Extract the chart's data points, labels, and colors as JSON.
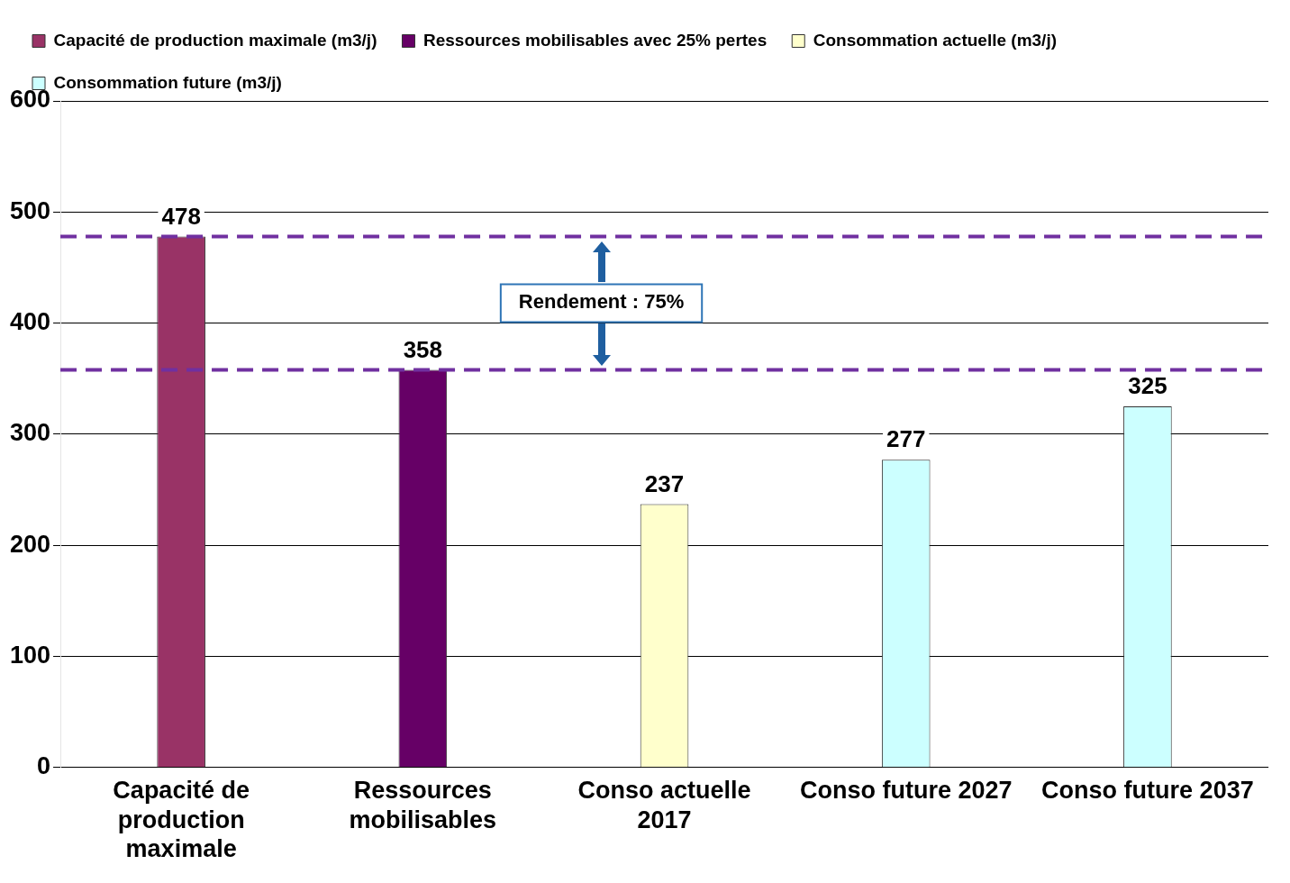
{
  "chart_data": {
    "type": "bar",
    "categories": [
      "Capacité de production maximale",
      "Ressources mobilisables",
      "Conso actuelle 2017",
      "Conso future 2027",
      "Conso future 2037"
    ],
    "series": [
      {
        "name": "Capacité de production maximale (m3/j)",
        "color": "#993366",
        "values": [
          478,
          null,
          null,
          null,
          null
        ]
      },
      {
        "name": "Ressources mobilisables avec 25% pertes",
        "color": "#660066",
        "values": [
          null,
          358,
          null,
          null,
          null
        ]
      },
      {
        "name": "Consommation actuelle (m3/j)",
        "color": "#ffffcc",
        "values": [
          null,
          null,
          237,
          null,
          null
        ]
      },
      {
        "name": "Consommation future (m3/j)",
        "color": "#ccffff",
        "values": [
          null,
          null,
          null,
          277,
          325
        ]
      }
    ],
    "ylim": [
      0,
      600
    ],
    "yticks": [
      0,
      100,
      200,
      300,
      400,
      500,
      600
    ],
    "grid": "y",
    "legend": "top left",
    "data_labels": true,
    "ref_lines": [
      {
        "axis": "y",
        "value": 478,
        "color": "#7030a0",
        "line_style": "dashed"
      },
      {
        "axis": "y",
        "value": 358,
        "color": "#7030a0",
        "line_style": "dashed"
      }
    ],
    "annotations": [
      "Rendement : 75%"
    ]
  }
}
